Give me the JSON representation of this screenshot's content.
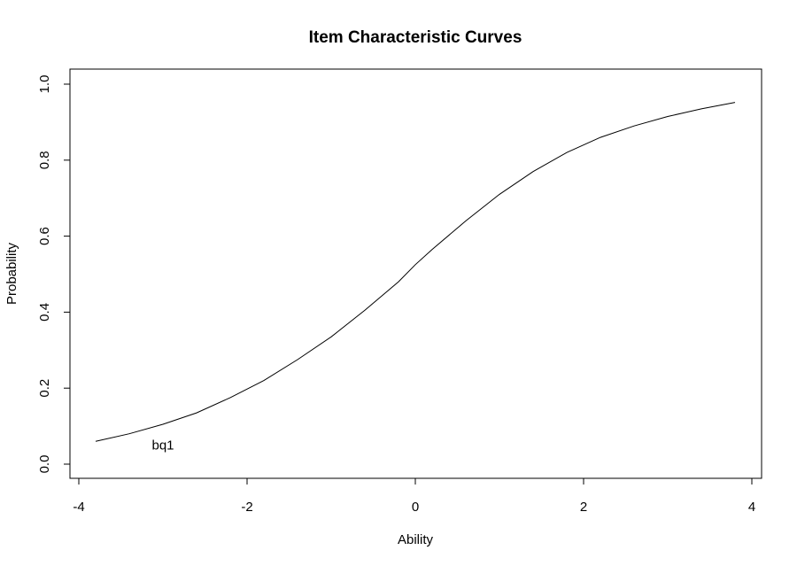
{
  "chart_data": {
    "type": "line",
    "title": "Item Characteristic Curves",
    "xlabel": "Ability",
    "ylabel": "Probability",
    "xlim": [
      -4,
      4
    ],
    "ylim": [
      0,
      1
    ],
    "x_ticks": [
      -4,
      -2,
      0,
      2,
      4
    ],
    "x_tick_labels": [
      "-4",
      "-2",
      "0",
      "2",
      "4"
    ],
    "y_ticks": [
      0,
      0.2,
      0.4,
      0.6,
      0.8,
      1
    ],
    "y_tick_labels": [
      "0.0",
      "0.2",
      "0.4",
      "0.6",
      "0.8",
      "1.0"
    ],
    "grid": false,
    "series": [
      {
        "label": "bq1",
        "x": [
          -3.8,
          -3.4,
          -3.0,
          -2.6,
          -2.2,
          -1.8,
          -1.4,
          -1.0,
          -0.6,
          -0.2,
          0.0,
          0.2,
          0.6,
          1.0,
          1.4,
          1.8,
          2.2,
          2.6,
          3.0,
          3.4,
          3.8
        ],
        "y": [
          0.06,
          0.08,
          0.105,
          0.135,
          0.175,
          0.22,
          0.275,
          0.335,
          0.405,
          0.48,
          0.525,
          0.565,
          0.64,
          0.71,
          0.77,
          0.82,
          0.86,
          0.89,
          0.915,
          0.935,
          0.952
        ]
      }
    ],
    "annotations": [
      {
        "text": "bq1",
        "x": -3.0,
        "y": 0.05
      }
    ]
  }
}
